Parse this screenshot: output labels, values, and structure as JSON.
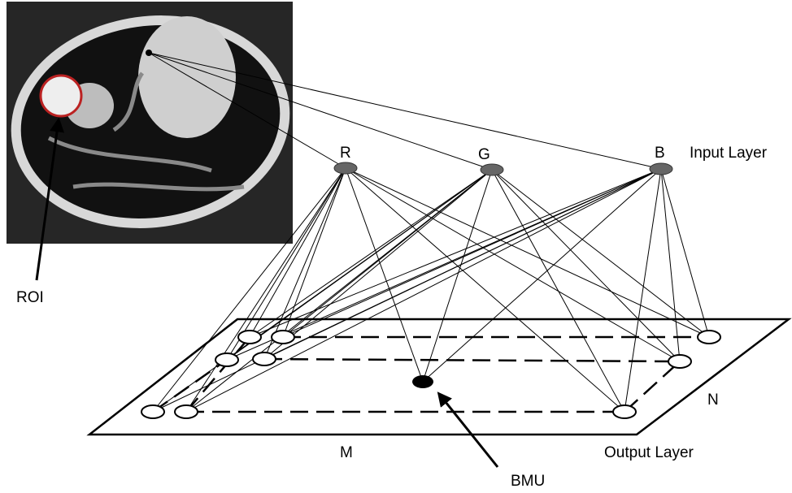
{
  "input_layer": {
    "title": "Input Layer",
    "nodes": [
      "R",
      "G",
      "B"
    ]
  },
  "output_layer": {
    "title": "Output Layer",
    "dims": [
      "M",
      "N"
    ],
    "bmu": "BMU"
  },
  "image": {
    "roi": "ROI"
  }
}
